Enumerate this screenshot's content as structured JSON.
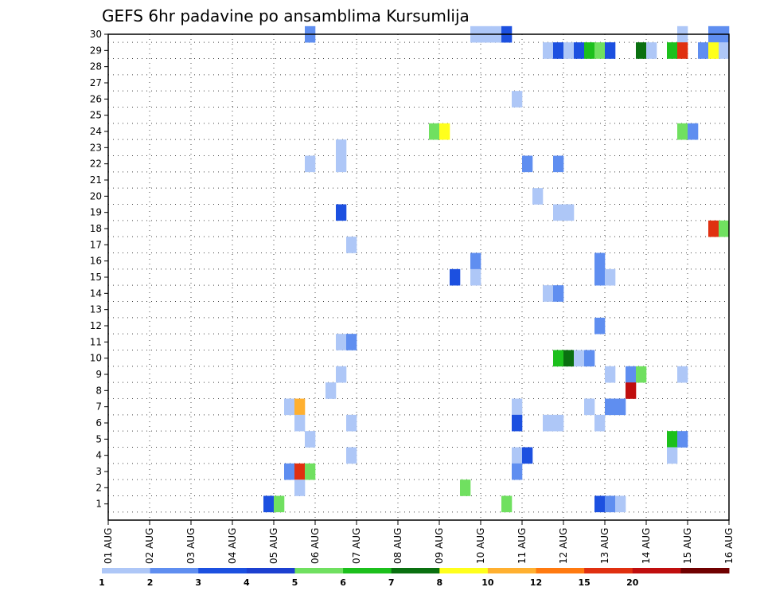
{
  "chart_data": {
    "type": "heatmap",
    "title": "GEFS 6hr padavine po ansamblima Kursumlija",
    "xlabel": "",
    "ylabel": "",
    "x_range": [
      0,
      15
    ],
    "y_range": [
      0,
      30
    ],
    "x_tick_labels": [
      "01 AUG",
      "02 AUG",
      "03 AUG",
      "04 AUG",
      "05 AUG",
      "06 AUG",
      "07 AUG",
      "08 AUG",
      "09 AUG",
      "10 AUG",
      "11 AUG",
      "12 AUG",
      "13 AUG",
      "14 AUG",
      "15 AUG",
      "16 AUG"
    ],
    "y_tick_labels": [
      "1",
      "2",
      "3",
      "4",
      "5",
      "6",
      "7",
      "8",
      "9",
      "10",
      "11",
      "12",
      "13",
      "14",
      "15",
      "16",
      "17",
      "18",
      "19",
      "20",
      "21",
      "22",
      "23",
      "24",
      "25",
      "26",
      "27",
      "28",
      "29",
      "30"
    ],
    "grid": true,
    "legend_placement": "bottom",
    "colorbar": {
      "labels": [
        "1",
        "2",
        "3",
        "4",
        "5",
        "6",
        "7",
        "8",
        "10",
        "12",
        "15",
        "20"
      ],
      "colors": [
        "#aec7f7",
        "#5f8ef0",
        "#1c50e0",
        "#1c40d0",
        "#70e060",
        "#1cc01c",
        "#0a7010",
        "#ffff1c",
        "#ffb030",
        "#ff7a10",
        "#e03010",
        "#c00e0e",
        "#700000"
      ]
    },
    "cells_note_units": "x = days since 01 AUG 00Z (start of 6h window), y = ensemble member, level = colorbar class index",
    "cells": [
      {
        "x": 4.75,
        "y": 30,
        "level": 2
      },
      {
        "x": 8.75,
        "y": 30,
        "level": 1
      },
      {
        "x": 9.0,
        "y": 30,
        "level": 1
      },
      {
        "x": 9.25,
        "y": 30,
        "level": 1
      },
      {
        "x": 9.5,
        "y": 30,
        "level": 3
      },
      {
        "x": 13.75,
        "y": 30,
        "level": 1
      },
      {
        "x": 14.5,
        "y": 30,
        "level": 2
      },
      {
        "x": 14.75,
        "y": 30,
        "level": 2
      },
      {
        "x": 10.5,
        "y": 29,
        "level": 1
      },
      {
        "x": 10.75,
        "y": 29,
        "level": 3
      },
      {
        "x": 11.0,
        "y": 29,
        "level": 1
      },
      {
        "x": 11.25,
        "y": 29,
        "level": 3
      },
      {
        "x": 11.5,
        "y": 29,
        "level": 6
      },
      {
        "x": 11.75,
        "y": 29,
        "level": 5
      },
      {
        "x": 12.0,
        "y": 29,
        "level": 3
      },
      {
        "x": 12.75,
        "y": 29,
        "level": 7
      },
      {
        "x": 13.0,
        "y": 29,
        "level": 1
      },
      {
        "x": 13.5,
        "y": 29,
        "level": 6
      },
      {
        "x": 13.75,
        "y": 29,
        "level": 11
      },
      {
        "x": 14.25,
        "y": 29,
        "level": 2
      },
      {
        "x": 14.5,
        "y": 29,
        "level": 8
      },
      {
        "x": 14.75,
        "y": 29,
        "level": 1
      },
      {
        "x": 9.75,
        "y": 26,
        "level": 1
      },
      {
        "x": 7.75,
        "y": 24,
        "level": 5
      },
      {
        "x": 8.0,
        "y": 24,
        "level": 8
      },
      {
        "x": 13.75,
        "y": 24,
        "level": 5
      },
      {
        "x": 14.0,
        "y": 24,
        "level": 2
      },
      {
        "x": 5.5,
        "y": 23,
        "level": 1
      },
      {
        "x": 4.75,
        "y": 22,
        "level": 1
      },
      {
        "x": 5.5,
        "y": 22,
        "level": 1
      },
      {
        "x": 10.0,
        "y": 22,
        "level": 2
      },
      {
        "x": 10.75,
        "y": 22,
        "level": 2
      },
      {
        "x": 10.25,
        "y": 20,
        "level": 1
      },
      {
        "x": 5.5,
        "y": 19,
        "level": 3
      },
      {
        "x": 10.75,
        "y": 19,
        "level": 1
      },
      {
        "x": 11.0,
        "y": 19,
        "level": 1
      },
      {
        "x": 14.5,
        "y": 18,
        "level": 11
      },
      {
        "x": 14.75,
        "y": 18,
        "level": 5
      },
      {
        "x": 5.75,
        "y": 17,
        "level": 1
      },
      {
        "x": 8.75,
        "y": 16,
        "level": 2
      },
      {
        "x": 11.75,
        "y": 16,
        "level": 2
      },
      {
        "x": 8.25,
        "y": 15,
        "level": 3
      },
      {
        "x": 8.75,
        "y": 15,
        "level": 1
      },
      {
        "x": 11.75,
        "y": 15,
        "level": 2
      },
      {
        "x": 12.0,
        "y": 15,
        "level": 1
      },
      {
        "x": 10.5,
        "y": 14,
        "level": 1
      },
      {
        "x": 10.75,
        "y": 14,
        "level": 2
      },
      {
        "x": 11.75,
        "y": 12,
        "level": 2
      },
      {
        "x": 5.5,
        "y": 11,
        "level": 1
      },
      {
        "x": 5.75,
        "y": 11,
        "level": 2
      },
      {
        "x": 10.75,
        "y": 10,
        "level": 6
      },
      {
        "x": 11.0,
        "y": 10,
        "level": 7
      },
      {
        "x": 11.25,
        "y": 10,
        "level": 1
      },
      {
        "x": 11.5,
        "y": 10,
        "level": 2
      },
      {
        "x": 5.5,
        "y": 9,
        "level": 1
      },
      {
        "x": 12.0,
        "y": 9,
        "level": 1
      },
      {
        "x": 12.5,
        "y": 9,
        "level": 2
      },
      {
        "x": 12.75,
        "y": 9,
        "level": 5
      },
      {
        "x": 13.75,
        "y": 9,
        "level": 1
      },
      {
        "x": 5.25,
        "y": 8,
        "level": 1
      },
      {
        "x": 12.5,
        "y": 8,
        "level": 12
      },
      {
        "x": 4.25,
        "y": 7,
        "level": 1
      },
      {
        "x": 4.5,
        "y": 7,
        "level": 9
      },
      {
        "x": 9.75,
        "y": 7,
        "level": 1
      },
      {
        "x": 11.5,
        "y": 7,
        "level": 1
      },
      {
        "x": 12.0,
        "y": 7,
        "level": 2
      },
      {
        "x": 12.25,
        "y": 7,
        "level": 2
      },
      {
        "x": 4.5,
        "y": 6,
        "level": 1
      },
      {
        "x": 5.75,
        "y": 6,
        "level": 1
      },
      {
        "x": 9.75,
        "y": 6,
        "level": 3
      },
      {
        "x": 10.5,
        "y": 6,
        "level": 1
      },
      {
        "x": 10.75,
        "y": 6,
        "level": 1
      },
      {
        "x": 11.75,
        "y": 6,
        "level": 1
      },
      {
        "x": 4.75,
        "y": 5,
        "level": 1
      },
      {
        "x": 13.5,
        "y": 5,
        "level": 6
      },
      {
        "x": 13.75,
        "y": 5,
        "level": 2
      },
      {
        "x": 5.75,
        "y": 4,
        "level": 1
      },
      {
        "x": 9.75,
        "y": 4,
        "level": 1
      },
      {
        "x": 10.0,
        "y": 4,
        "level": 3
      },
      {
        "x": 13.5,
        "y": 4,
        "level": 1
      },
      {
        "x": 4.25,
        "y": 3,
        "level": 2
      },
      {
        "x": 4.5,
        "y": 3,
        "level": 11
      },
      {
        "x": 4.75,
        "y": 3,
        "level": 5
      },
      {
        "x": 9.75,
        "y": 3,
        "level": 2
      },
      {
        "x": 4.5,
        "y": 2,
        "level": 1
      },
      {
        "x": 8.5,
        "y": 2,
        "level": 5
      },
      {
        "x": 3.75,
        "y": 1,
        "level": 3
      },
      {
        "x": 4.0,
        "y": 1,
        "level": 5
      },
      {
        "x": 9.5,
        "y": 1,
        "level": 5
      },
      {
        "x": 11.75,
        "y": 1,
        "level": 3
      },
      {
        "x": 12.0,
        "y": 1,
        "level": 2
      },
      {
        "x": 12.25,
        "y": 1,
        "level": 1
      }
    ]
  }
}
